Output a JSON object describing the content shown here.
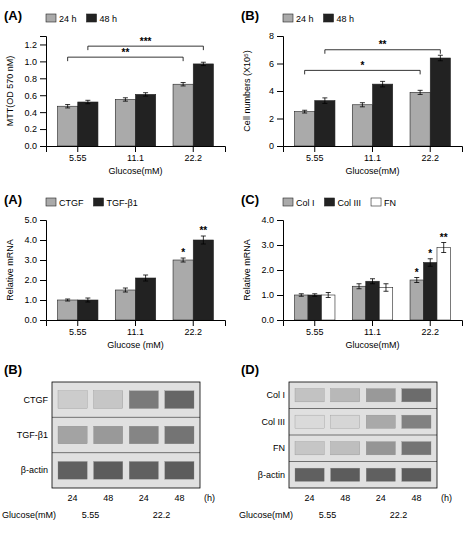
{
  "chart_data": [
    {
      "type": "bar",
      "panel_label": "(A)",
      "categories": [
        "5.55",
        "11.1",
        "22.2"
      ],
      "series": [
        {
          "name": "24 h",
          "color": "#aaaaaa",
          "values": [
            0.47,
            0.55,
            0.73
          ],
          "errors": [
            0.02,
            0.02,
            0.02
          ]
        },
        {
          "name": "48 h",
          "color": "#222222",
          "values": [
            0.52,
            0.61,
            0.97
          ],
          "errors": [
            0.02,
            0.02,
            0.02
          ]
        }
      ],
      "ylabel": "MTT(OD 570 nM)",
      "xlabel": "Glucose(mM)",
      "ylim": [
        0,
        1.3
      ],
      "yticks": [
        {
          "value": 0,
          "label": "0.0"
        },
        0.2,
        0.4,
        0.6,
        0.8,
        {
          "value": 1.0,
          "label": "1.0"
        },
        1.2
      ],
      "legend": "top",
      "significance": [
        {
          "y": 1.05,
          "from": "5.55",
          "to": "22.2",
          "series": "24 h",
          "label": "**"
        },
        {
          "y": 1.18,
          "from": "5.55",
          "to": "22.2",
          "series": "48 h",
          "label": "***"
        }
      ]
    },
    {
      "type": "bar",
      "panel_label": "(B)",
      "categories": [
        "5.55",
        "11.1",
        "22.2"
      ],
      "series": [
        {
          "name": "24 h",
          "color": "#aaaaaa",
          "values": [
            2.5,
            3.0,
            3.9
          ],
          "errors": [
            0.1,
            0.15,
            0.15
          ]
        },
        {
          "name": "48 h",
          "color": "#222222",
          "values": [
            3.3,
            4.5,
            6.4
          ],
          "errors": [
            0.2,
            0.2,
            0.2
          ]
        }
      ],
      "ylabel": "Cell numbers (X10⁵)",
      "xlabel": "Glucose(mM)",
      "ylim": [
        0,
        8
      ],
      "yticks": [
        0,
        2,
        4,
        6,
        8
      ],
      "legend": "top",
      "significance": [
        {
          "y": 5.5,
          "from": "5.55",
          "to": "22.2",
          "series": "24 h",
          "label": "*"
        },
        {
          "y": 7.0,
          "from": "5.55",
          "to": "22.2",
          "series": "48 h",
          "label": "**"
        }
      ]
    },
    {
      "type": "bar",
      "panel_label": "(A)",
      "categories": [
        "5.55",
        "11.1",
        "22.2"
      ],
      "series": [
        {
          "name": "CTGF",
          "color": "#aaaaaa",
          "values": [
            1.0,
            1.5,
            3.0
          ],
          "errors": [
            0.05,
            0.1,
            0.1
          ]
        },
        {
          "name": "TGF-β1",
          "color": "#222222",
          "values": [
            1.0,
            2.1,
            4.0
          ],
          "errors": [
            0.1,
            0.15,
            0.2
          ]
        }
      ],
      "ylabel": "Relative mRNA",
      "xlabel": "Glucose (mM)",
      "ylim": [
        0,
        5.0
      ],
      "yticks": [
        {
          "value": 0,
          "label": "0.0"
        },
        {
          "value": 1,
          "label": "1.0"
        },
        {
          "value": 2,
          "label": "2.0"
        },
        {
          "value": 3,
          "label": "3.0"
        },
        {
          "value": 4,
          "label": "4.0"
        },
        {
          "value": 5,
          "label": "5.0"
        }
      ],
      "legend": "top",
      "annotations": [
        {
          "text": "*",
          "category": "22.2",
          "series": "CTGF"
        },
        {
          "text": "**",
          "category": "22.2",
          "series": "TGF-β1"
        }
      ]
    },
    {
      "type": "bar",
      "panel_label": "(C)",
      "categories": [
        "5.55",
        "11.1",
        "22.2"
      ],
      "series": [
        {
          "name": "Col I",
          "color": "#aaaaaa",
          "values": [
            1.0,
            1.35,
            1.6
          ],
          "errors": [
            0.05,
            0.1,
            0.1
          ]
        },
        {
          "name": "Col III",
          "color": "#222222",
          "values": [
            1.0,
            1.55,
            2.3
          ],
          "errors": [
            0.05,
            0.1,
            0.15
          ]
        },
        {
          "name": "FN",
          "color": "#ffffff",
          "values": [
            1.0,
            1.3,
            2.9
          ],
          "errors": [
            0.1,
            0.15,
            0.2
          ]
        }
      ],
      "ylabel": "Relative mRNA",
      "xlabel": "Glucose(mM)",
      "ylim": [
        0,
        4.0
      ],
      "yticks": [
        {
          "value": 0,
          "label": "0.0"
        },
        {
          "value": 1,
          "label": "1.0"
        },
        {
          "value": 2,
          "label": "2.0"
        },
        {
          "value": 3,
          "label": "3.0"
        },
        {
          "value": 4,
          "label": "4.0"
        }
      ],
      "legend": "top",
      "annotations": [
        {
          "text": "*",
          "category": "22.2",
          "series": "Col I"
        },
        {
          "text": "*",
          "category": "22.2",
          "series": "Col III"
        },
        {
          "text": "**",
          "category": "22.2",
          "series": "FN"
        }
      ]
    },
    {
      "type": "heatmap",
      "panel_label": "(B)",
      "rows": [
        "CTGF",
        "TGF-β1",
        "β-actin"
      ],
      "columns": [
        "24",
        "48",
        "24",
        "48"
      ],
      "column_unit": "(h)",
      "groups": [
        "5.55",
        "22.2"
      ],
      "group_label": "Glucose(mM)",
      "values": [
        [
          0.25,
          0.28,
          0.65,
          0.75
        ],
        [
          0.45,
          0.5,
          0.6,
          0.68
        ],
        [
          0.78,
          0.8,
          0.78,
          0.8
        ]
      ]
    },
    {
      "type": "heatmap",
      "panel_label": "(D)",
      "rows": [
        "Col I",
        "Col III",
        "FN",
        "β-actin"
      ],
      "columns": [
        "24",
        "48",
        "24",
        "48"
      ],
      "column_unit": "(h)",
      "groups": [
        "5.55",
        "22.2"
      ],
      "group_label": "Glucose(mM)",
      "values": [
        [
          0.3,
          0.35,
          0.5,
          0.72
        ],
        [
          0.18,
          0.2,
          0.42,
          0.62
        ],
        [
          0.28,
          0.32,
          0.52,
          0.68
        ],
        [
          0.78,
          0.8,
          0.78,
          0.8
        ]
      ]
    }
  ]
}
